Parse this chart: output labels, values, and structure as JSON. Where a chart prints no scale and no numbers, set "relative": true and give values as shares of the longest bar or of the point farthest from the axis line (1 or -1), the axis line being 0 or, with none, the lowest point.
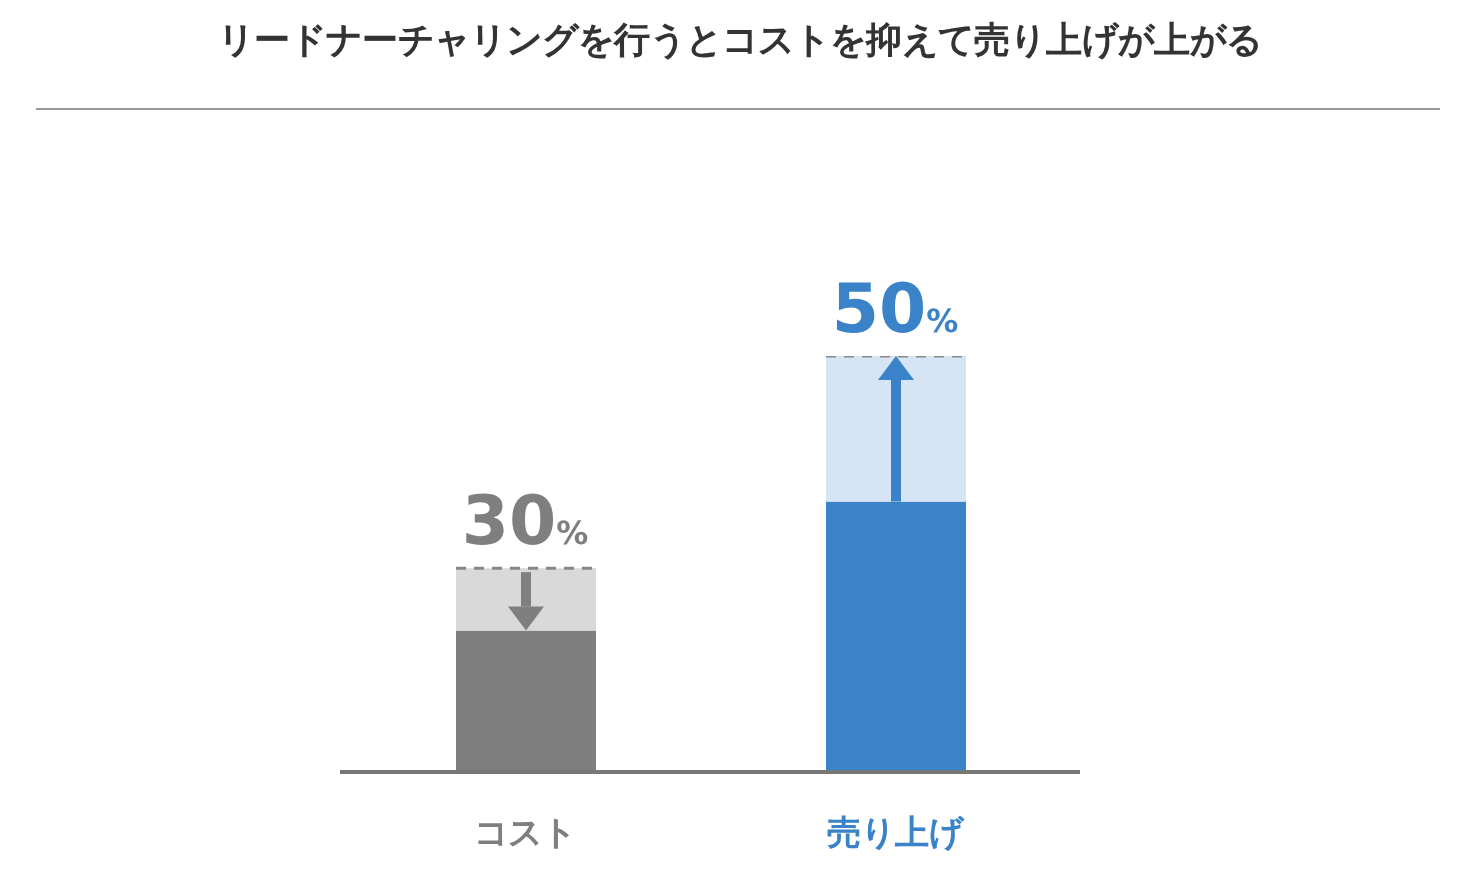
{
  "chart_data": {
    "type": "bar",
    "title": "リードナーチャリングを行うとコストを抑えて売り上げが上がる",
    "categories": [
      "コスト",
      "売り上げ"
    ],
    "stacked": true,
    "relative": true,
    "series": [
      {
        "colors": [
          "#7f7f7f",
          "#3a83c8"
        ],
        "values": [
          0.34,
          0.65
        ]
      },
      {
        "colors": [
          "#d9d9d9",
          "#d5e5f5"
        ],
        "values": [
          0.15,
          0.35
        ]
      }
    ],
    "annotations": [
      {
        "text": "30%",
        "x": "コスト",
        "y": 0.49
      },
      {
        "text": "50%",
        "x": "売り上げ",
        "y": 1
      }
    ],
    "grid": false,
    "legend": false
  }
}
